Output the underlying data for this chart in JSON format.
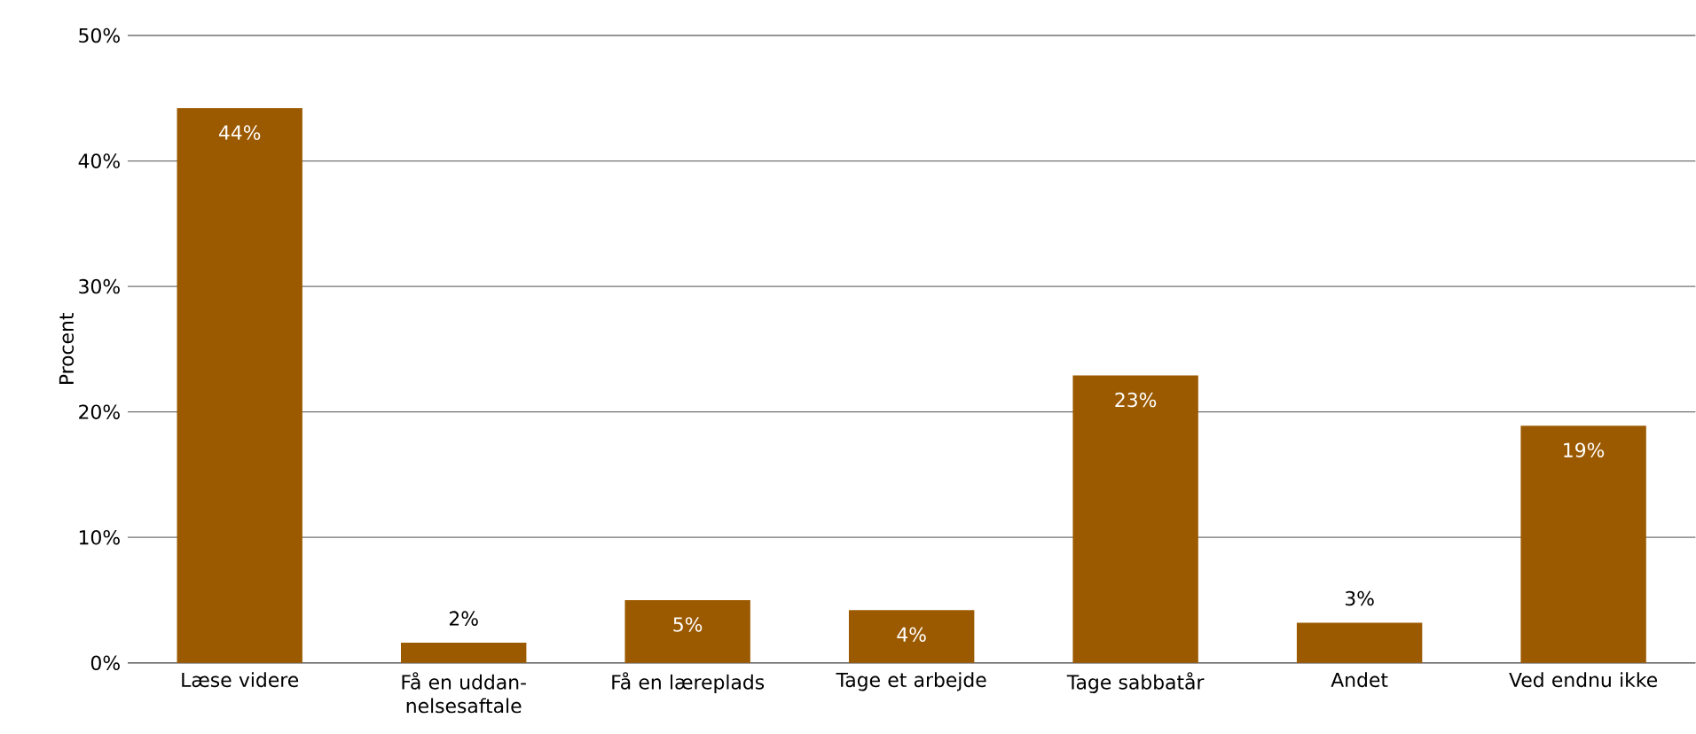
{
  "chart_data": {
    "type": "bar",
    "ylabel": "Procent",
    "categories": [
      "Læse videre",
      "Få en uddan-nelsesaftale",
      "Få en læreplads",
      "Tage et arbejde",
      "Tage sabbatår",
      "Andet",
      "Ved endnu ikke"
    ],
    "values": [
      44.2,
      1.6,
      5.0,
      4.2,
      22.9,
      3.2,
      18.9
    ],
    "value_labels": [
      "44%",
      "2%",
      "5%",
      "4%",
      "23%",
      "3%",
      "19%"
    ],
    "color": "#9c5a00",
    "ylim": [
      0,
      50
    ],
    "yticks": [
      {
        "value": 0,
        "label": "0%"
      },
      {
        "value": 10,
        "label": "10%"
      },
      {
        "value": 20,
        "label": "20%"
      },
      {
        "value": 30,
        "label": "30%"
      },
      {
        "value": 40,
        "label": "40%"
      },
      {
        "value": 50,
        "label": "50%"
      }
    ],
    "grid": "y"
  }
}
